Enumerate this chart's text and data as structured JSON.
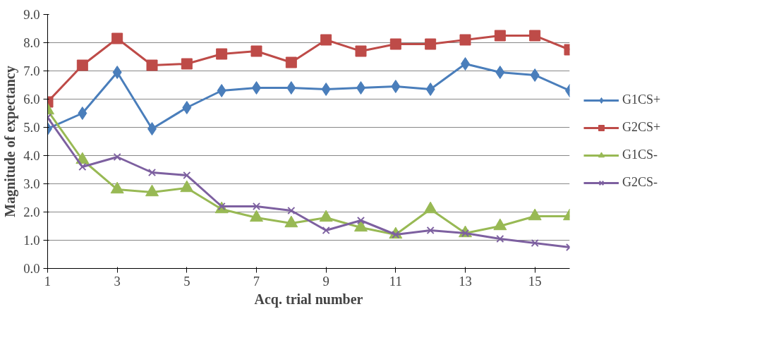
{
  "chart_data": {
    "type": "line",
    "xlabel": "Acq. trial number",
    "ylabel": "Magnitude of expectancy",
    "x": [
      1,
      2,
      3,
      4,
      5,
      6,
      7,
      8,
      9,
      10,
      11,
      12,
      13,
      14,
      15,
      16
    ],
    "xlim": [
      1,
      16
    ],
    "xticks": [
      1,
      3,
      5,
      7,
      9,
      11,
      13,
      15
    ],
    "ylim": [
      0,
      9
    ],
    "yticks": [
      {
        "value": 0,
        "label": "0.0"
      },
      {
        "value": 1,
        "label": "1.0"
      },
      {
        "value": 2,
        "label": "2.0"
      },
      {
        "value": 3,
        "label": "3.0"
      },
      {
        "value": 4,
        "label": "4.0"
      },
      {
        "value": 5,
        "label": "5.0"
      },
      {
        "value": 6,
        "label": "6.0"
      },
      {
        "value": 7,
        "label": "7.0"
      },
      {
        "value": 8,
        "label": "8.0"
      },
      {
        "value": 9,
        "label": "9.0"
      }
    ],
    "grid": "y",
    "legend": "right",
    "line_style": "solid",
    "series": [
      {
        "name": "G1CS+",
        "color": "#4a7ebb",
        "marker": "diamond",
        "values": [
          4.95,
          5.5,
          6.95,
          4.95,
          5.7,
          6.3,
          6.4,
          6.4,
          6.35,
          6.4,
          6.45,
          6.35,
          7.25,
          6.95,
          6.85,
          6.3
        ]
      },
      {
        "name": "G2CS+",
        "color": "#be4b48",
        "marker": "square",
        "values": [
          5.9,
          7.2,
          8.15,
          7.2,
          7.25,
          7.6,
          7.7,
          7.3,
          8.1,
          7.7,
          7.95,
          7.95,
          8.1,
          8.25,
          8.25,
          7.75
        ]
      },
      {
        "name": "G1CS-",
        "color": "#98b954",
        "marker": "triangle",
        "values": [
          5.6,
          3.85,
          2.8,
          2.7,
          2.85,
          2.1,
          1.8,
          1.6,
          1.8,
          1.45,
          1.2,
          2.1,
          1.25,
          1.5,
          1.85,
          1.85
        ]
      },
      {
        "name": "G2CS-",
        "color": "#7d60a0",
        "marker": "cross",
        "values": [
          5.35,
          3.6,
          3.95,
          3.4,
          3.3,
          2.2,
          2.2,
          2.05,
          1.35,
          1.7,
          1.2,
          1.35,
          1.25,
          1.05,
          0.9,
          0.75
        ]
      }
    ]
  }
}
